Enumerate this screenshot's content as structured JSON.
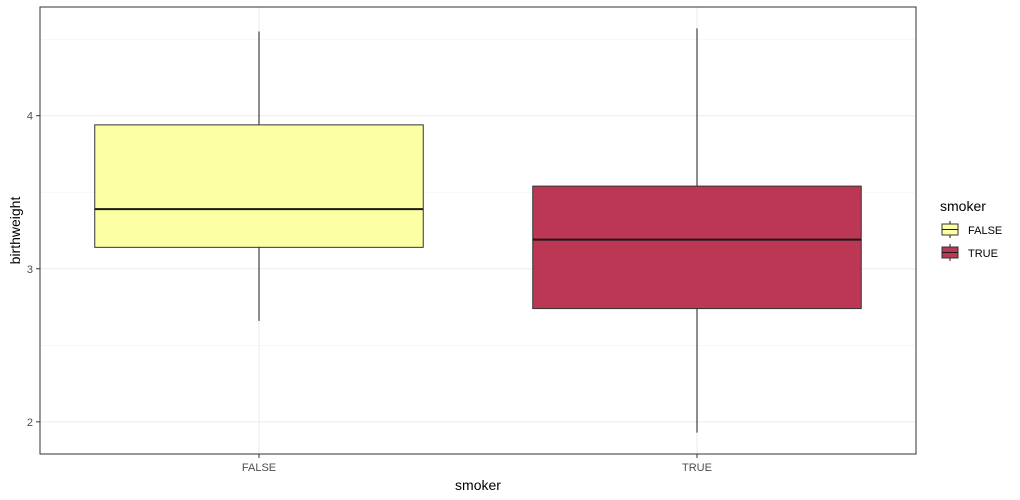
{
  "chart_data": {
    "type": "boxplot",
    "title": "",
    "xlabel": "smoker",
    "ylabel": "birthweight",
    "categories": [
      "FALSE",
      "TRUE"
    ],
    "boxes": [
      {
        "category": "FALSE",
        "min": 2.66,
        "q1": 3.14,
        "median": 3.39,
        "q3": 3.94,
        "max": 4.55,
        "color": "#FCFFA4"
      },
      {
        "category": "TRUE",
        "min": 1.93,
        "q1": 2.74,
        "median": 3.19,
        "q3": 3.54,
        "max": 4.57,
        "color": "#BC3754"
      }
    ],
    "yticks": [
      2,
      3,
      4
    ],
    "ylim": [
      1.79,
      4.71
    ],
    "grid": true,
    "legend": {
      "title": "smoker",
      "position": "right",
      "items": [
        {
          "label": "FALSE",
          "color": "#FCFFA4"
        },
        {
          "label": "TRUE",
          "color": "#BC3754"
        }
      ]
    }
  }
}
